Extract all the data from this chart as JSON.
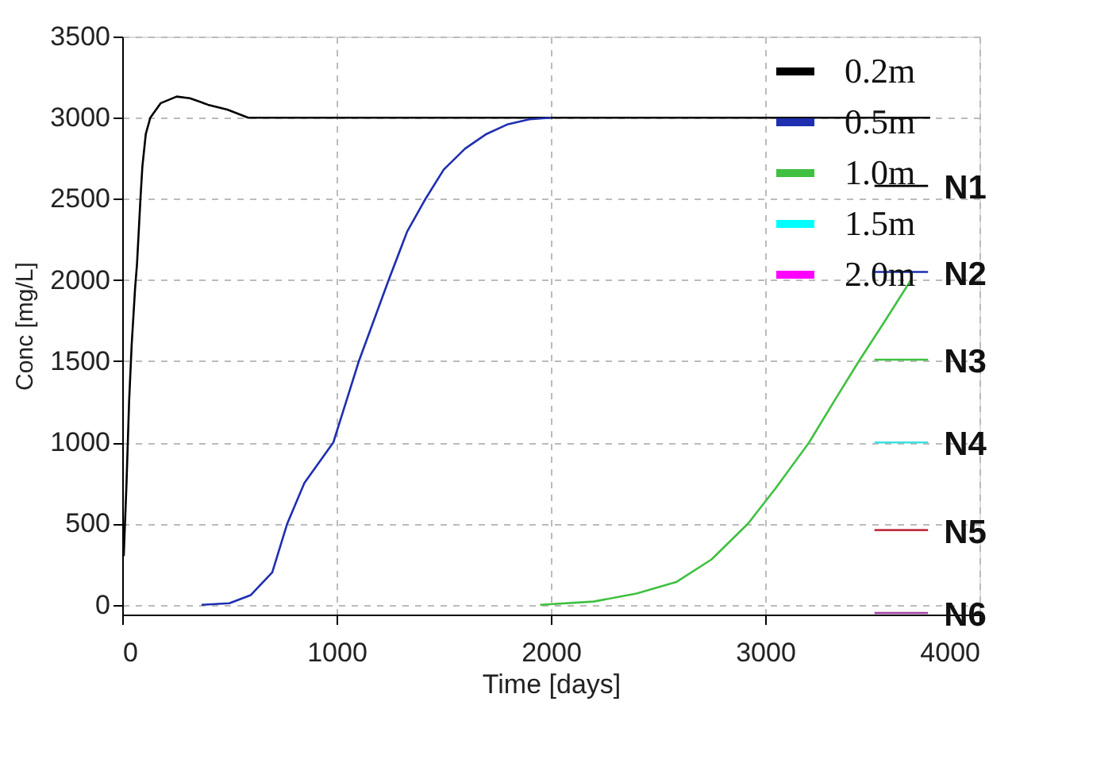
{
  "chart_data": {
    "type": "line",
    "xlabel": "Time [days]",
    "ylabel": "Conc [mg/L]",
    "xlim": [
      0,
      4000
    ],
    "xticks": [
      0,
      1000,
      2000,
      3000,
      4000
    ],
    "ylim": [
      -60,
      3500
    ],
    "yticks": [
      0,
      500,
      1000,
      1500,
      2000,
      2500,
      3000,
      3500
    ],
    "grid": true,
    "legend": "top right",
    "line_style": "solid",
    "marker": "none",
    "series": [
      {
        "name": "0.2m",
        "color": "#000000",
        "x": [
          7,
          20,
          32,
          44,
          60,
          69,
          85,
          94,
          110,
          131,
          180,
          254,
          316,
          400,
          490,
          588,
          3770
        ],
        "values": [
          300,
          750,
          1250,
          1600,
          1950,
          2100,
          2500,
          2700,
          2900,
          3000,
          3090,
          3130,
          3120,
          3080,
          3050,
          3000,
          3000
        ]
      },
      {
        "name": "0.5m",
        "color": "#1f2fb0",
        "x": [
          370,
          500,
          600,
          700,
          770,
          850,
          985,
          1104,
          1243,
          1330,
          1415,
          1500,
          1600,
          1700,
          1800,
          1900,
          2000
        ],
        "values": [
          0,
          10,
          60,
          200,
          500,
          750,
          1000,
          1500,
          2000,
          2300,
          2500,
          2680,
          2810,
          2900,
          2960,
          2990,
          3000
        ]
      },
      {
        "name": "1.0m",
        "color": "#40c040",
        "x": [
          1950,
          2200,
          2400,
          2585,
          2750,
          2920,
          3050,
          3205,
          3320,
          3437,
          3550,
          3680
        ],
        "values": [
          0,
          20,
          70,
          140,
          280,
          500,
          720,
          1000,
          1250,
          1500,
          1730,
          2000
        ]
      },
      {
        "name": "1.5m",
        "color": "#00ffff"
      },
      {
        "name": "2.0m",
        "color": "#ff00ff"
      },
      {
        "color": "#000000",
        "x": [
          3510,
          3760
        ],
        "values": [
          2580,
          2580
        ]
      },
      {
        "color": "#1f2fb0",
        "x": [
          3510,
          3760
        ],
        "values": [
          2050,
          2050
        ]
      },
      {
        "color": "#40c040",
        "x": [
          3510,
          3760
        ],
        "values": [
          1510,
          1510
        ]
      },
      {
        "color": "#40e0e0",
        "x": [
          3510,
          3760
        ],
        "values": [
          1000,
          1000
        ]
      },
      {
        "color": "#c03040",
        "x": [
          3510,
          3760
        ],
        "values": [
          460,
          460
        ]
      },
      {
        "color": "#a040a0",
        "x": [
          3510,
          3760
        ],
        "values": [
          -50,
          -50
        ]
      }
    ],
    "annotations": [
      "N1",
      "N2",
      "N3",
      "N4",
      "N5",
      "N6"
    ]
  }
}
